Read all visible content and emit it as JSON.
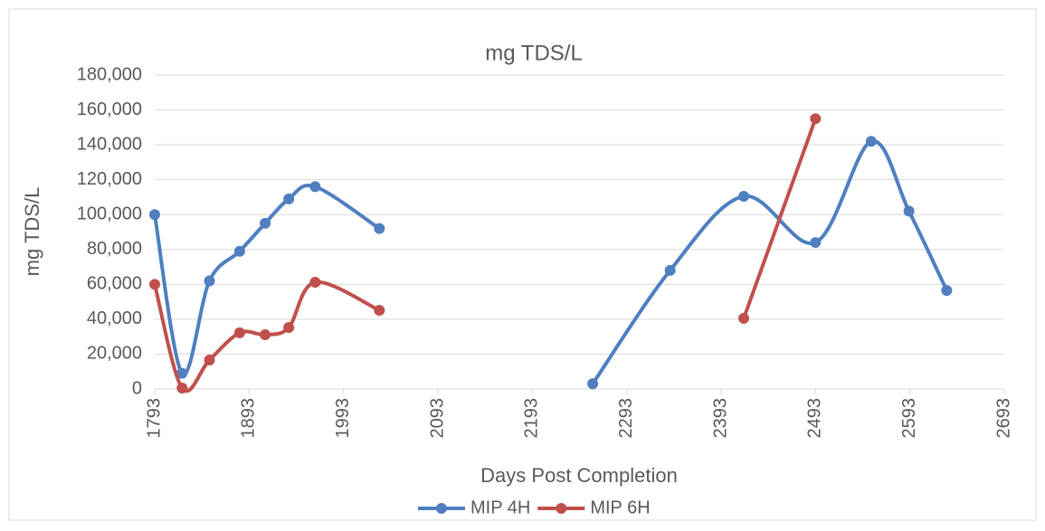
{
  "chart_data": {
    "type": "scatter-smooth",
    "title": "mg TDS/L",
    "x_label": "Days Post Completion",
    "y_label": "mg TDS/L",
    "xlim": [
      1793,
      2693
    ],
    "xticks": [
      1793,
      1893,
      1993,
      2093,
      2193,
      2293,
      2393,
      2493,
      2593,
      2693
    ],
    "ylim": [
      0,
      180000
    ],
    "yticks": [
      0,
      {
        "value": 20000,
        "label": "20,000"
      },
      {
        "value": 40000,
        "label": "40,000"
      },
      {
        "value": 60000,
        "label": "60,000"
      },
      {
        "value": 80000,
        "label": "80,000"
      },
      {
        "value": 100000,
        "label": "100,000"
      },
      {
        "value": 120000,
        "label": "120,000"
      },
      {
        "value": 140000,
        "label": "140,000"
      },
      {
        "value": 160000,
        "label": "160,000"
      },
      {
        "value": 180000,
        "label": "180,000"
      }
    ],
    "grid": true,
    "legend": "bottom",
    "series": [
      {
        "name": "MIP 4H",
        "color": "#4f7fbf",
        "x": [
          1793,
          1822,
          1851,
          1883,
          1910,
          1935,
          1963,
          2031,
          null,
          2257,
          2339,
          2417,
          2493,
          2552,
          2592,
          2632
        ],
        "values": [
          100000,
          9000,
          62000,
          79000,
          95000,
          109000,
          116000,
          92000,
          null,
          3000,
          68000,
          110500,
          84000,
          142000,
          102000,
          56500
        ]
      },
      {
        "name": "MIP 6H",
        "color": "#c0504d",
        "x": [
          1793,
          1822,
          1851,
          1883,
          1910,
          1935,
          1963,
          2031,
          null,
          2417,
          2493
        ],
        "values": [
          60000,
          500,
          16600,
          32200,
          31100,
          35300,
          61200,
          45100,
          null,
          40500,
          155000
        ]
      }
    ]
  }
}
